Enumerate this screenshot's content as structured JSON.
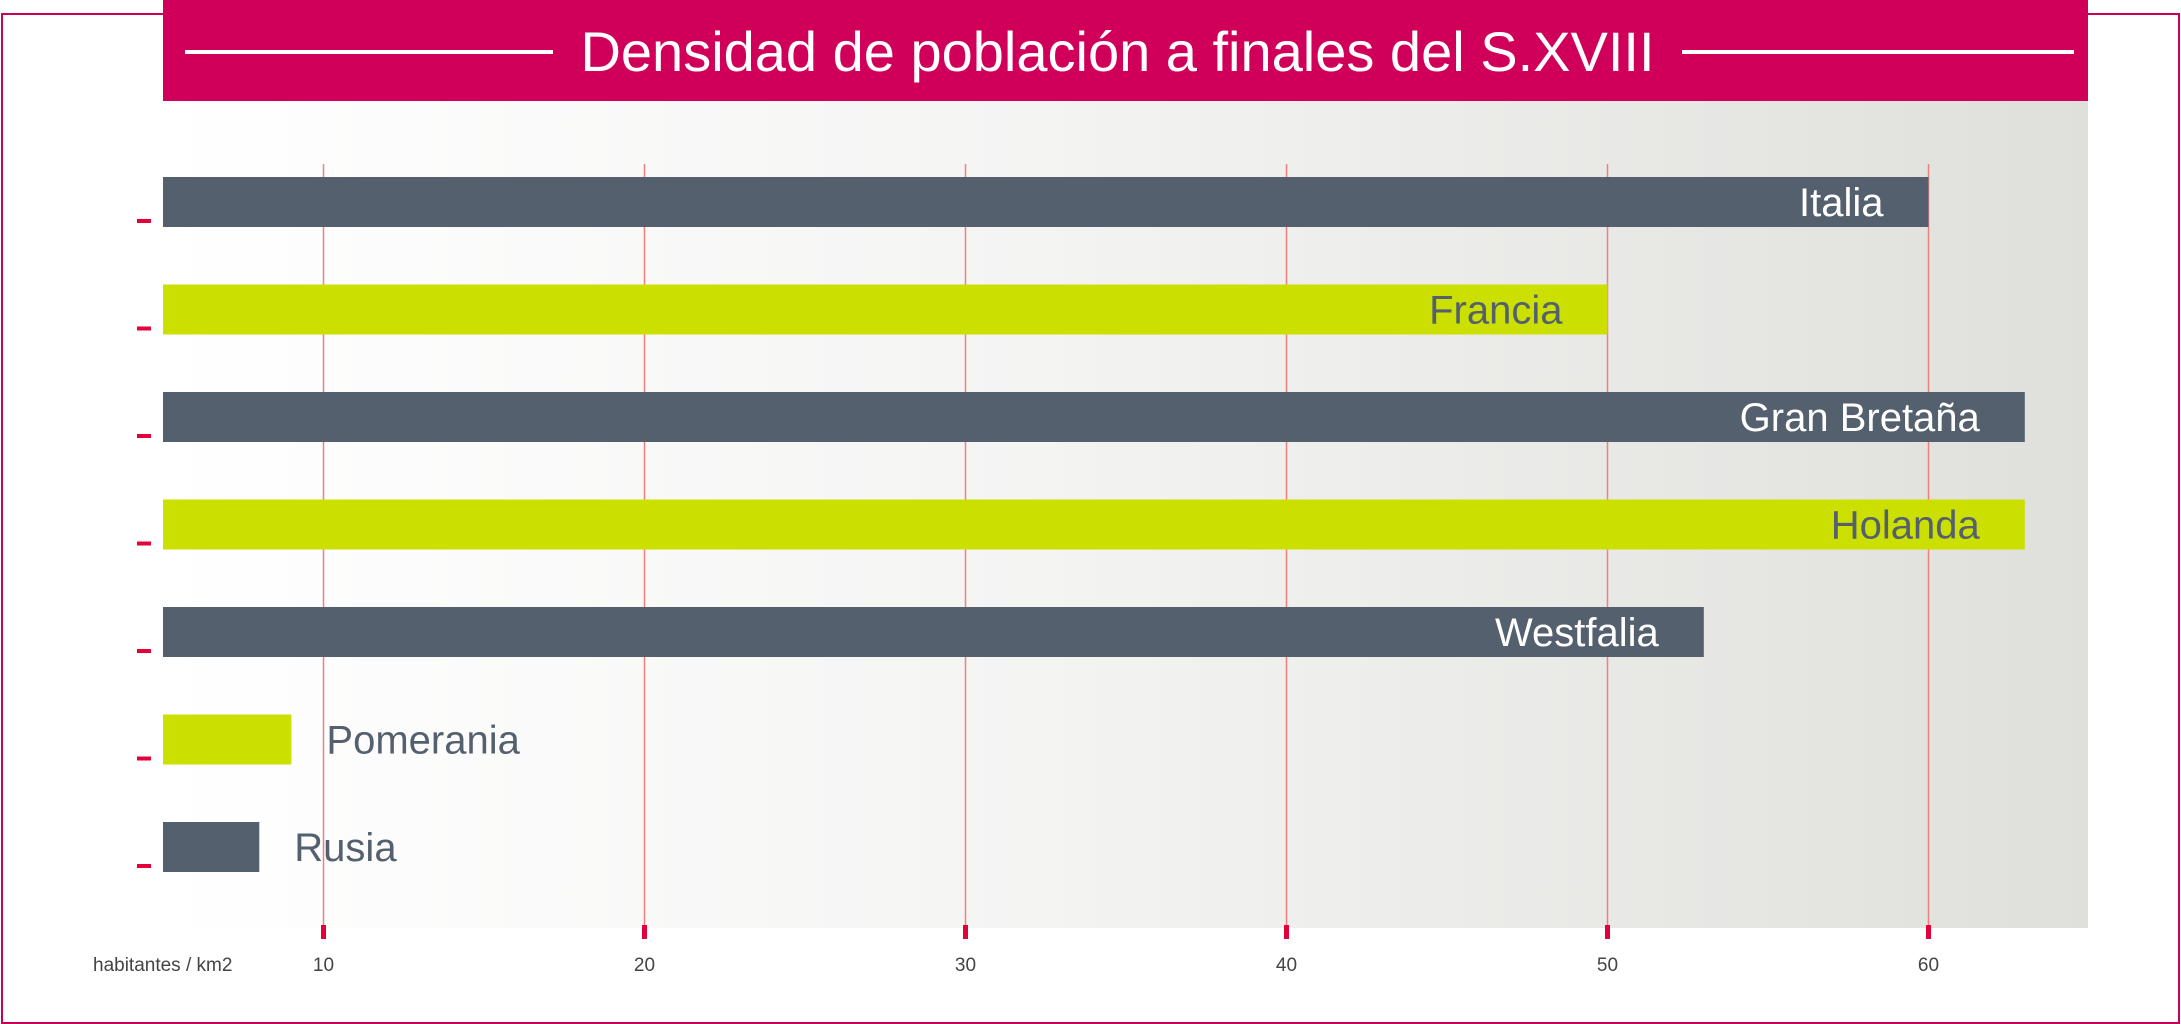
{
  "chart_data": {
    "type": "bar",
    "orientation": "horizontal",
    "title": "Densidad de población a finales del S.XVIII",
    "xlabel": "habitantes / km2",
    "ylabel": "",
    "xlim": [
      5,
      65
    ],
    "xticks": [
      10,
      20,
      30,
      40,
      50,
      60
    ],
    "grid": true,
    "categories": [
      "Italia",
      "Francia",
      "Gran Bretaña",
      "Holanda",
      "Westfalia",
      "Pomerania",
      "Rusia"
    ],
    "values": [
      60,
      50,
      63,
      63,
      53,
      9,
      8
    ]
  },
  "colors": {
    "accent": "#d0005a",
    "bar_dark": "#55606e",
    "bar_light": "#cbdf00",
    "label_on_dark": "#ffffff",
    "label_on_light": "#55606e",
    "grid": "#f08080",
    "tick": "#e4003a",
    "axis_text": "#444444"
  }
}
